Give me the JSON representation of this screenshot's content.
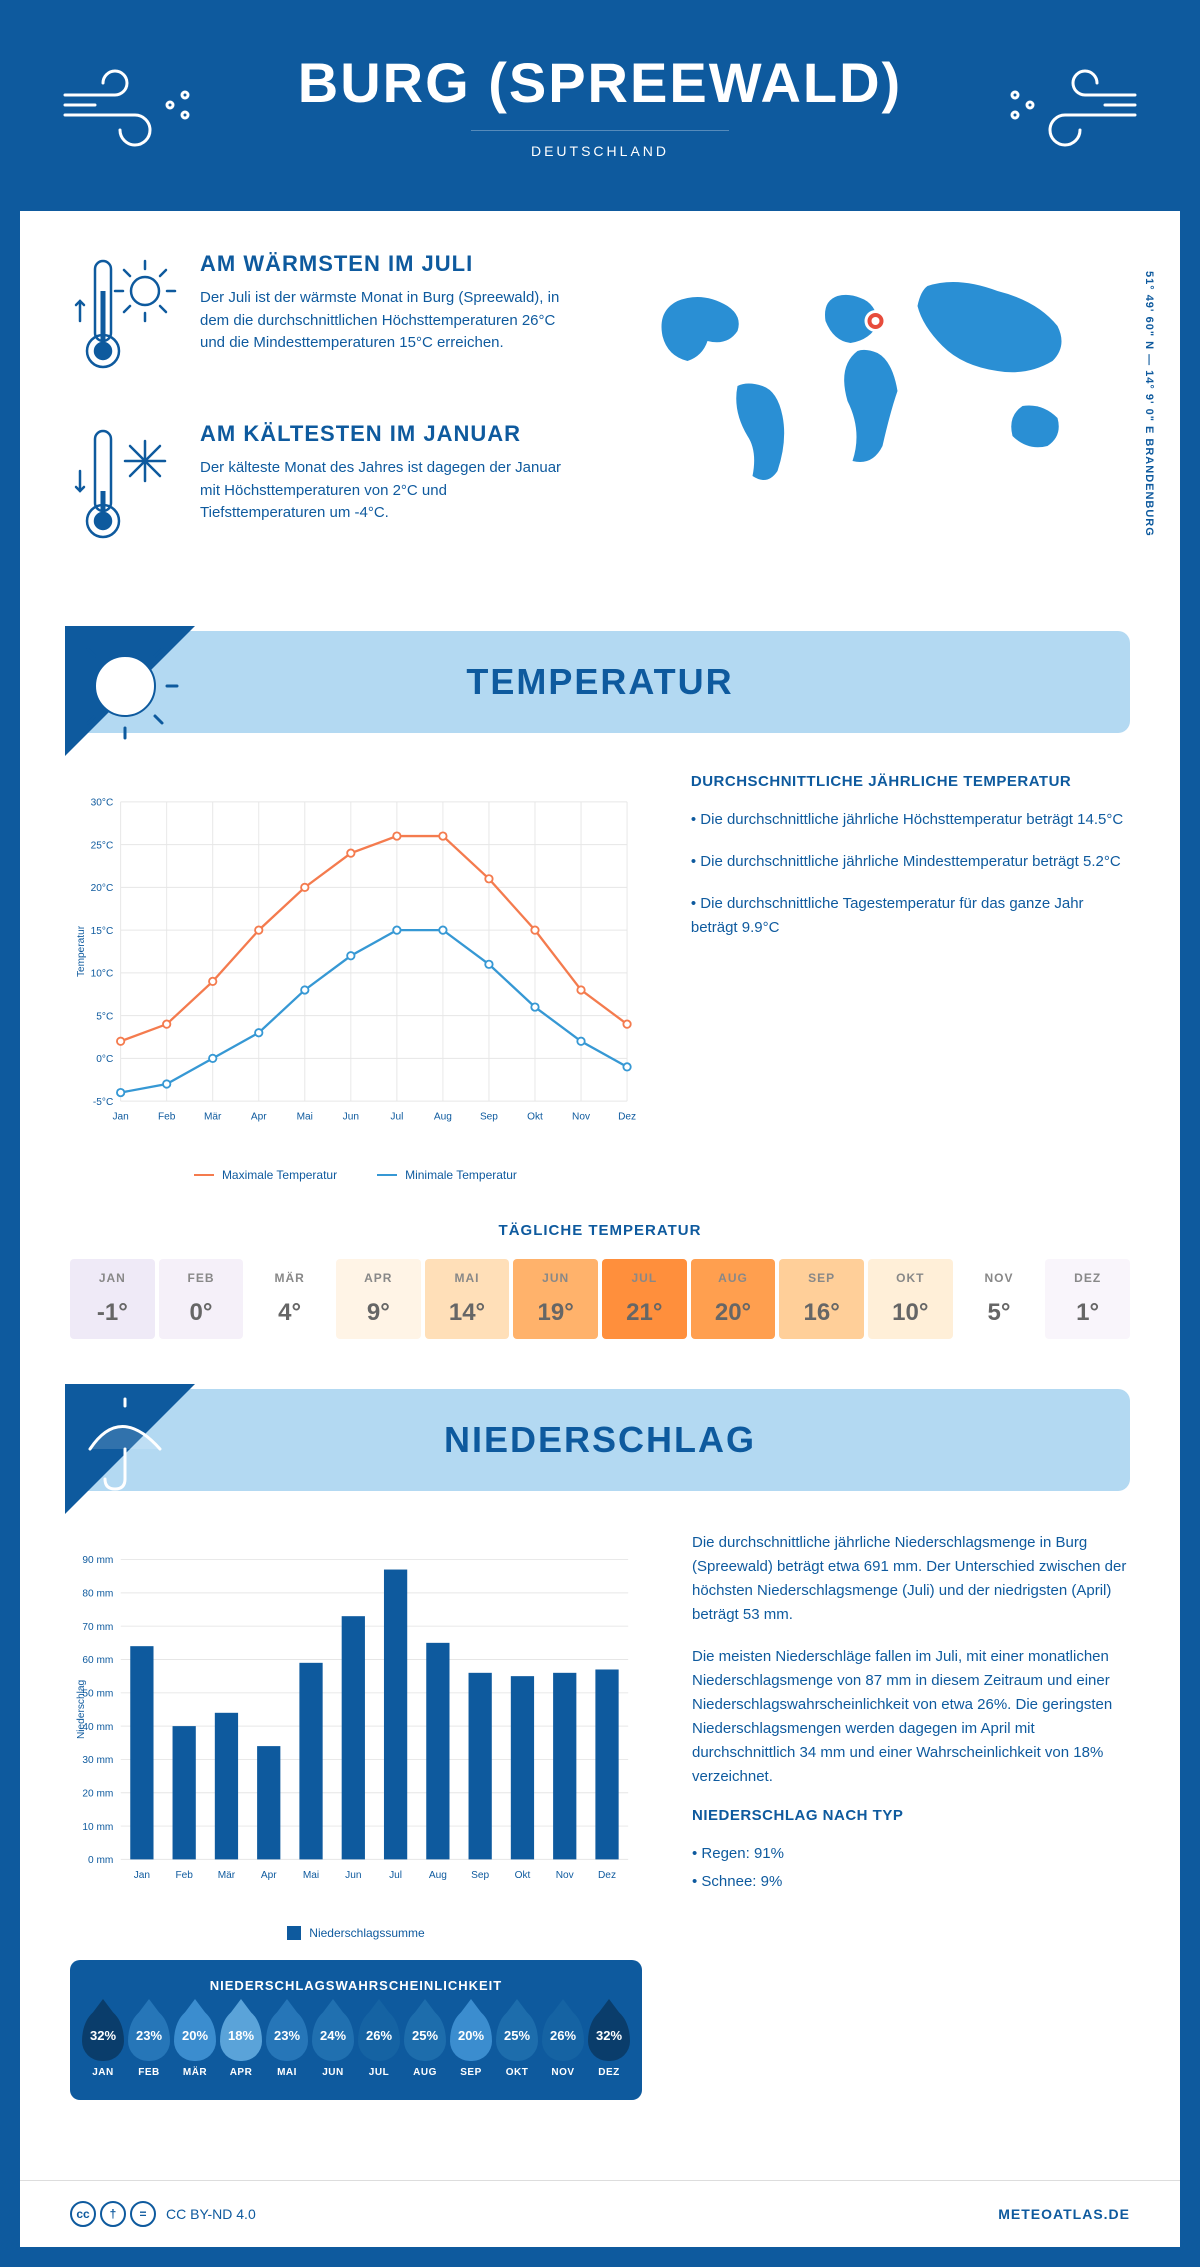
{
  "header": {
    "title": "BURG (SPREEWALD)",
    "country": "DEUTSCHLAND"
  },
  "coords": "51° 49' 60\" N — 14° 9' 0\" E    BRANDENBURG",
  "facts": {
    "warm_title": "AM WÄRMSTEN IM JULI",
    "warm_text": "Der Juli ist der wärmste Monat in Burg (Spreewald), in dem die durchschnittlichen Höchsttemperaturen 26°C und die Mindesttemperaturen 15°C erreichen.",
    "cold_title": "AM KÄLTESTEN IM JANUAR",
    "cold_text": "Der kälteste Monat des Jahres ist dagegen der Januar mit Höchsttemperaturen von 2°C und Tiefsttemperaturen um -4°C."
  },
  "sections": {
    "temp_title": "TEMPERATUR",
    "precip_title": "NIEDERSCHLAG"
  },
  "temp_chart": {
    "type": "line",
    "months": [
      "Jan",
      "Feb",
      "Mär",
      "Apr",
      "Mai",
      "Jun",
      "Jul",
      "Aug",
      "Sep",
      "Okt",
      "Nov",
      "Dez"
    ],
    "max_values": [
      2,
      4,
      9,
      15,
      20,
      24,
      26,
      26,
      21,
      15,
      8,
      4
    ],
    "min_values": [
      -4,
      -3,
      0,
      3,
      8,
      12,
      15,
      15,
      11,
      6,
      2,
      -1
    ],
    "ylabel": "Temperatur",
    "ylim": [
      -5,
      30
    ],
    "ytick_step": 5,
    "max_color": "#f47b4e",
    "min_color": "#3698d4",
    "grid_color": "#e6e6e6",
    "text_color": "#0e5a9e",
    "legend_max": "Maximale Temperatur",
    "legend_min": "Minimale Temperatur",
    "fontsize_axis": 11
  },
  "temp_desc": {
    "title": "DURCHSCHNITTLICHE JÄHRLICHE TEMPERATUR",
    "bullet1": "• Die durchschnittliche jährliche Höchsttemperatur beträgt 14.5°C",
    "bullet2": "• Die durchschnittliche jährliche Mindesttemperatur beträgt 5.2°C",
    "bullet3": "• Die durchschnittliche Tagestemperatur für das ganze Jahr beträgt 9.9°C"
  },
  "daily_temp": {
    "title": "TÄGLICHE TEMPERATUR",
    "months": [
      "JAN",
      "FEB",
      "MÄR",
      "APR",
      "MAI",
      "JUN",
      "JUL",
      "AUG",
      "SEP",
      "OKT",
      "NOV",
      "DEZ"
    ],
    "values": [
      "-1°",
      "0°",
      "4°",
      "9°",
      "14°",
      "19°",
      "21°",
      "20°",
      "16°",
      "10°",
      "5°",
      "1°"
    ],
    "colors": [
      "#efeaf7",
      "#f5f0f9",
      "#ffffff",
      "#fff4e6",
      "#ffdfb8",
      "#ffb26b",
      "#ff8f3c",
      "#ff9f4f",
      "#ffcf99",
      "#ffefd8",
      "#ffffff",
      "#f9f5fb"
    ]
  },
  "precip_chart": {
    "type": "bar",
    "months": [
      "Jan",
      "Feb",
      "Mär",
      "Apr",
      "Mai",
      "Jun",
      "Jul",
      "Aug",
      "Sep",
      "Okt",
      "Nov",
      "Dez"
    ],
    "values": [
      64,
      40,
      44,
      34,
      59,
      73,
      87,
      65,
      56,
      55,
      56,
      57
    ],
    "ylabel": "Niederschlag",
    "ylim": [
      0,
      90
    ],
    "ytick_step": 10,
    "bar_color": "#0e5a9e",
    "grid_color": "#e6e6e6",
    "text_color": "#0e5a9e",
    "legend": "Niederschlagssumme",
    "fontsize_axis": 11
  },
  "precip_desc": {
    "para1": "Die durchschnittliche jährliche Niederschlagsmenge in Burg (Spreewald) beträgt etwa 691 mm. Der Unterschied zwischen der höchsten Niederschlagsmenge (Juli) und der niedrigsten (April) beträgt 53 mm.",
    "para2": "Die meisten Niederschläge fallen im Juli, mit einer monatlichen Niederschlagsmenge von 87 mm in diesem Zeitraum und einer Niederschlagswahrscheinlichkeit von etwa 26%. Die geringsten Niederschlagsmengen werden dagegen im April mit durchschnittlich 34 mm und einer Wahrscheinlichkeit von 18% verzeichnet.",
    "type_title": "NIEDERSCHLAG NACH TYP",
    "type1": "• Regen: 91%",
    "type2": "• Schnee: 9%"
  },
  "precip_prob": {
    "title": "NIEDERSCHLAGSWAHRSCHEINLICHKEIT",
    "months": [
      "JAN",
      "FEB",
      "MÄR",
      "APR",
      "MAI",
      "JUN",
      "JUL",
      "AUG",
      "SEP",
      "OKT",
      "NOV",
      "DEZ"
    ],
    "values": [
      "32%",
      "23%",
      "20%",
      "18%",
      "23%",
      "24%",
      "26%",
      "25%",
      "20%",
      "25%",
      "26%",
      "32%"
    ],
    "drop_colors": [
      "#0a3d6b",
      "#2676b8",
      "#3b8dcf",
      "#5aa3d9",
      "#2676b8",
      "#2070b0",
      "#1563a3",
      "#1d6dac",
      "#3b8dcf",
      "#1d6dac",
      "#1563a3",
      "#0a3d6b"
    ]
  },
  "footer": {
    "license": "CC BY-ND 4.0",
    "site": "METEOATLAS.DE"
  },
  "colors": {
    "primary": "#0e5a9e",
    "light_blue": "#b3d9f2",
    "map_blue": "#2a8fd4",
    "marker": "#e74c3c"
  }
}
